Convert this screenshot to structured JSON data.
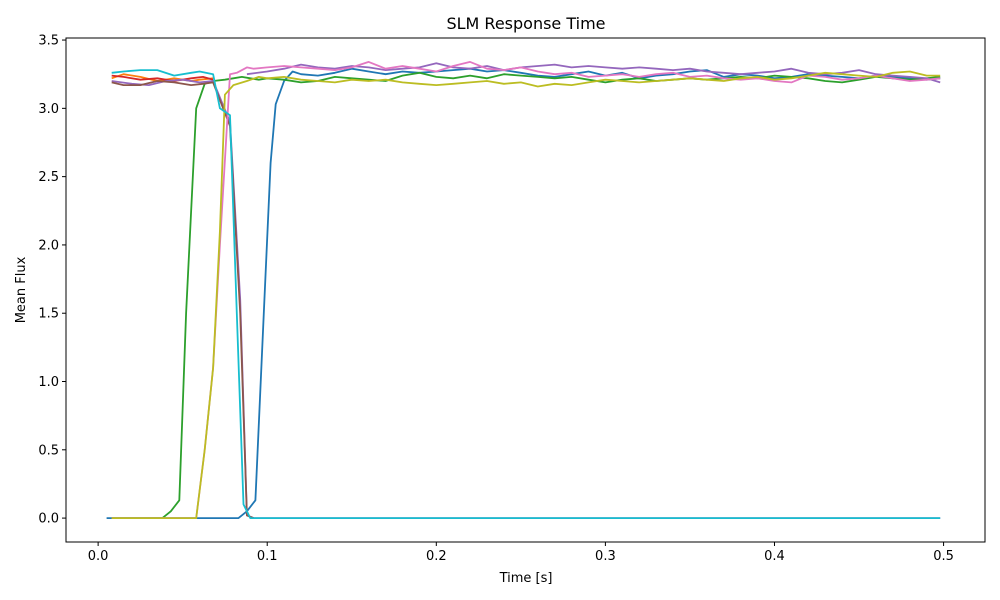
{
  "chart_data": {
    "type": "line",
    "title": "SLM Response Time",
    "xlabel": "Time [s]",
    "ylabel": "Mean Flux",
    "xlim": [
      -0.019,
      0.5245
    ],
    "ylim": [
      -0.175,
      3.515
    ],
    "xticks": [
      0.0,
      0.1,
      0.2,
      0.3,
      0.4,
      0.5
    ],
    "xtick_labels": [
      "0.0",
      "0.1",
      "0.2",
      "0.3",
      "0.4",
      "0.5"
    ],
    "yticks": [
      0.0,
      0.5,
      1.0,
      1.5,
      2.0,
      2.5,
      3.0,
      3.5
    ],
    "ytick_labels": [
      "0.0",
      "0.5",
      "1.0",
      "1.5",
      "2.0",
      "2.5",
      "3.0",
      "3.5"
    ],
    "grid": false,
    "series": [
      {
        "color": "#1f77b4",
        "x": [
          0.005,
          0.01,
          0.02,
          0.03,
          0.04,
          0.05,
          0.06,
          0.07,
          0.08,
          0.083,
          0.088,
          0.093,
          0.098,
          0.102,
          0.105,
          0.11,
          0.115,
          0.12,
          0.13,
          0.14,
          0.15,
          0.16,
          0.17,
          0.18,
          0.19,
          0.2,
          0.21,
          0.22,
          0.23,
          0.24,
          0.25,
          0.26,
          0.27,
          0.28,
          0.29,
          0.3,
          0.31,
          0.32,
          0.33,
          0.34,
          0.35,
          0.36,
          0.37,
          0.38,
          0.39,
          0.4,
          0.41,
          0.42,
          0.43,
          0.44,
          0.45,
          0.46,
          0.47,
          0.48,
          0.49,
          0.498
        ],
        "y": [
          0.0,
          0.0,
          0.0,
          0.0,
          0.0,
          0.0,
          0.0,
          0.0,
          0.0,
          0.0,
          0.05,
          0.13,
          1.5,
          2.6,
          3.03,
          3.2,
          3.27,
          3.25,
          3.24,
          3.26,
          3.29,
          3.27,
          3.25,
          3.27,
          3.26,
          3.27,
          3.28,
          3.29,
          3.27,
          3.28,
          3.26,
          3.24,
          3.23,
          3.25,
          3.27,
          3.24,
          3.26,
          3.22,
          3.24,
          3.25,
          3.27,
          3.28,
          3.23,
          3.25,
          3.24,
          3.22,
          3.23,
          3.25,
          3.24,
          3.23,
          3.22,
          3.24,
          3.23,
          3.22,
          3.21,
          3.22
        ]
      },
      {
        "color": "#ff7f0e",
        "x": [
          0.008,
          0.015,
          0.025,
          0.035,
          0.045,
          0.055,
          0.06,
          0.068
        ],
        "y": [
          3.22,
          3.25,
          3.23,
          3.2,
          3.22,
          3.2,
          3.21,
          3.22
        ]
      },
      {
        "color": "#2ca02c",
        "x": [
          0.008,
          0.02,
          0.03,
          0.038,
          0.043,
          0.048,
          0.052,
          0.058,
          0.063,
          0.068,
          0.075,
          0.08,
          0.085,
          0.09,
          0.095,
          0.1,
          0.11,
          0.12,
          0.13,
          0.14,
          0.15,
          0.16,
          0.17,
          0.18,
          0.19,
          0.2,
          0.21,
          0.22,
          0.23,
          0.24,
          0.25,
          0.26,
          0.27,
          0.28,
          0.29,
          0.3,
          0.31,
          0.32,
          0.33,
          0.34,
          0.35,
          0.36,
          0.37,
          0.38,
          0.39,
          0.4,
          0.41,
          0.42,
          0.43,
          0.44,
          0.45,
          0.46,
          0.47,
          0.48,
          0.49,
          0.498
        ],
        "y": [
          0.0,
          0.0,
          0.0,
          0.0,
          0.05,
          0.13,
          1.5,
          3.0,
          3.18,
          3.2,
          3.21,
          3.22,
          3.23,
          3.22,
          3.21,
          3.22,
          3.21,
          3.19,
          3.2,
          3.23,
          3.22,
          3.21,
          3.2,
          3.24,
          3.26,
          3.23,
          3.22,
          3.24,
          3.22,
          3.25,
          3.24,
          3.23,
          3.22,
          3.23,
          3.21,
          3.19,
          3.21,
          3.22,
          3.2,
          3.21,
          3.22,
          3.21,
          3.22,
          3.23,
          3.22,
          3.24,
          3.23,
          3.22,
          3.2,
          3.19,
          3.21,
          3.23,
          3.22,
          3.21,
          3.22,
          3.23
        ]
      },
      {
        "color": "#d62728",
        "x": [
          0.008,
          0.015,
          0.025,
          0.035,
          0.045,
          0.055,
          0.062,
          0.068
        ],
        "y": [
          3.24,
          3.23,
          3.21,
          3.22,
          3.2,
          3.22,
          3.23,
          3.21
        ]
      },
      {
        "color": "#9467bd",
        "x": [
          0.008,
          0.02,
          0.03,
          0.04,
          0.05,
          0.06,
          0.068,
          0.078,
          0.084,
          0.088,
          0.092,
          0.1,
          0.11,
          0.12,
          0.13,
          0.14,
          0.15,
          0.16,
          0.17,
          0.18,
          0.19,
          0.2,
          0.21,
          0.22,
          0.23,
          0.24,
          0.25,
          0.26,
          0.27,
          0.28,
          0.29,
          0.3,
          0.31,
          0.32,
          0.33,
          0.34,
          0.35,
          0.36,
          0.37,
          0.38,
          0.39,
          0.4,
          0.41,
          0.42,
          0.43,
          0.44,
          0.45,
          0.46,
          0.47,
          0.48,
          0.49,
          0.498
        ],
        "y": [
          3.2,
          3.18,
          3.17,
          3.2,
          3.21,
          3.19,
          3.2,
          2.9,
          1.6,
          0.02,
          0.0,
          0.0,
          0.0,
          0.0,
          0.0,
          0.0,
          0.0,
          0.0,
          0.0,
          0.0,
          0.0,
          0.0,
          0.0,
          0.0,
          0.0,
          0.0,
          0.0,
          0.0,
          0.0,
          0.0,
          0.0,
          0.0,
          0.0,
          0.0,
          0.0,
          0.0,
          0.0,
          0.0,
          0.0,
          0.0,
          0.0,
          0.0,
          0.0,
          0.0,
          0.0,
          0.0,
          0.0,
          0.0,
          0.0,
          0.0,
          0.0,
          0.0
        ]
      },
      {
        "color": "#9467bd",
        "x": [
          0.088,
          0.1,
          0.11,
          0.12,
          0.13,
          0.14,
          0.15,
          0.16,
          0.17,
          0.18,
          0.19,
          0.2,
          0.21,
          0.22,
          0.23,
          0.24,
          0.25,
          0.26,
          0.27,
          0.28,
          0.29,
          0.3,
          0.31,
          0.32,
          0.33,
          0.34,
          0.35,
          0.36,
          0.37,
          0.38,
          0.39,
          0.4,
          0.41,
          0.42,
          0.43,
          0.44,
          0.45,
          0.46,
          0.47,
          0.48,
          0.49,
          0.498
        ],
        "y": [
          3.25,
          3.27,
          3.29,
          3.32,
          3.3,
          3.29,
          3.31,
          3.3,
          3.28,
          3.29,
          3.3,
          3.33,
          3.3,
          3.29,
          3.31,
          3.28,
          3.3,
          3.31,
          3.32,
          3.3,
          3.31,
          3.3,
          3.29,
          3.3,
          3.29,
          3.28,
          3.29,
          3.27,
          3.26,
          3.25,
          3.26,
          3.27,
          3.29,
          3.26,
          3.25,
          3.26,
          3.28,
          3.25,
          3.24,
          3.23,
          3.22,
          3.19
        ]
      },
      {
        "color": "#8c564b",
        "x": [
          0.008,
          0.015,
          0.025,
          0.035,
          0.045,
          0.055,
          0.062,
          0.068,
          0.078,
          0.084,
          0.088,
          0.092
        ],
        "y": [
          3.19,
          3.17,
          3.17,
          3.2,
          3.19,
          3.17,
          3.18,
          3.19,
          2.87,
          1.5,
          0.02,
          0.0
        ]
      },
      {
        "color": "#e377c2",
        "x": [
          0.008,
          0.02,
          0.03,
          0.04,
          0.05,
          0.058,
          0.063,
          0.068,
          0.072,
          0.078,
          0.082,
          0.088,
          0.092,
          0.1,
          0.11,
          0.12,
          0.13,
          0.14,
          0.15,
          0.16,
          0.17,
          0.18,
          0.19,
          0.2,
          0.21,
          0.22,
          0.23,
          0.24,
          0.25,
          0.26,
          0.27,
          0.28,
          0.29,
          0.3,
          0.31,
          0.32,
          0.33,
          0.34,
          0.35,
          0.36,
          0.37,
          0.38,
          0.39,
          0.4,
          0.41,
          0.42,
          0.43,
          0.44,
          0.45,
          0.46,
          0.47,
          0.48,
          0.49,
          0.498
        ],
        "y": [
          0.0,
          0.0,
          0.0,
          0.0,
          0.0,
          0.0,
          0.5,
          1.1,
          2.0,
          3.25,
          3.26,
          3.3,
          3.29,
          3.3,
          3.31,
          3.3,
          3.29,
          3.28,
          3.3,
          3.34,
          3.29,
          3.31,
          3.29,
          3.27,
          3.31,
          3.34,
          3.29,
          3.28,
          3.3,
          3.27,
          3.25,
          3.26,
          3.23,
          3.24,
          3.25,
          3.23,
          3.25,
          3.26,
          3.23,
          3.24,
          3.22,
          3.21,
          3.22,
          3.2,
          3.19,
          3.24,
          3.23,
          3.21,
          3.22,
          3.24,
          3.22,
          3.2,
          3.21,
          3.22
        ]
      },
      {
        "color": "#bcbd22",
        "x": [
          0.008,
          0.02,
          0.03,
          0.04,
          0.05,
          0.058,
          0.063,
          0.068,
          0.072,
          0.075,
          0.08,
          0.088,
          0.095,
          0.1,
          0.11,
          0.12,
          0.13,
          0.14,
          0.15,
          0.16,
          0.17,
          0.18,
          0.19,
          0.2,
          0.21,
          0.22,
          0.23,
          0.24,
          0.25,
          0.26,
          0.27,
          0.28,
          0.29,
          0.3,
          0.31,
          0.32,
          0.33,
          0.34,
          0.35,
          0.36,
          0.37,
          0.38,
          0.39,
          0.4,
          0.41,
          0.42,
          0.43,
          0.44,
          0.45,
          0.46,
          0.47,
          0.48,
          0.49,
          0.498
        ],
        "y": [
          0.0,
          0.0,
          0.0,
          0.0,
          0.0,
          0.0,
          0.5,
          1.1,
          2.1,
          3.1,
          3.17,
          3.2,
          3.23,
          3.22,
          3.23,
          3.21,
          3.2,
          3.19,
          3.21,
          3.2,
          3.21,
          3.19,
          3.18,
          3.17,
          3.18,
          3.19,
          3.2,
          3.18,
          3.19,
          3.16,
          3.18,
          3.17,
          3.19,
          3.21,
          3.2,
          3.19,
          3.2,
          3.21,
          3.22,
          3.21,
          3.2,
          3.22,
          3.23,
          3.21,
          3.22,
          3.24,
          3.26,
          3.25,
          3.24,
          3.23,
          3.26,
          3.27,
          3.24,
          3.24
        ]
      },
      {
        "color": "#17becf",
        "x": [
          0.008,
          0.015,
          0.025,
          0.035,
          0.045,
          0.055,
          0.06,
          0.068,
          0.072,
          0.078,
          0.082,
          0.086,
          0.09,
          0.1,
          0.11,
          0.12,
          0.13,
          0.14,
          0.15,
          0.16,
          0.17,
          0.18,
          0.19,
          0.2,
          0.21,
          0.22,
          0.23,
          0.24,
          0.25,
          0.26,
          0.27,
          0.28,
          0.29,
          0.3,
          0.31,
          0.32,
          0.33,
          0.34,
          0.35,
          0.36,
          0.37,
          0.38,
          0.39,
          0.4,
          0.41,
          0.42,
          0.43,
          0.44,
          0.45,
          0.46,
          0.47,
          0.48,
          0.49,
          0.498
        ],
        "y": [
          3.26,
          3.27,
          3.28,
          3.28,
          3.24,
          3.26,
          3.27,
          3.25,
          3.0,
          2.95,
          1.5,
          0.1,
          0.0,
          0.0,
          0.0,
          0.0,
          0.0,
          0.0,
          0.0,
          0.0,
          0.0,
          0.0,
          0.0,
          0.0,
          0.0,
          0.0,
          0.0,
          0.0,
          0.0,
          0.0,
          0.0,
          0.0,
          0.0,
          0.0,
          0.0,
          0.0,
          0.0,
          0.0,
          0.0,
          0.0,
          0.0,
          0.0,
          0.0,
          0.0,
          0.0,
          0.0,
          0.0,
          0.0,
          0.0,
          0.0,
          0.0,
          0.0,
          0.0,
          0.0
        ]
      }
    ]
  }
}
